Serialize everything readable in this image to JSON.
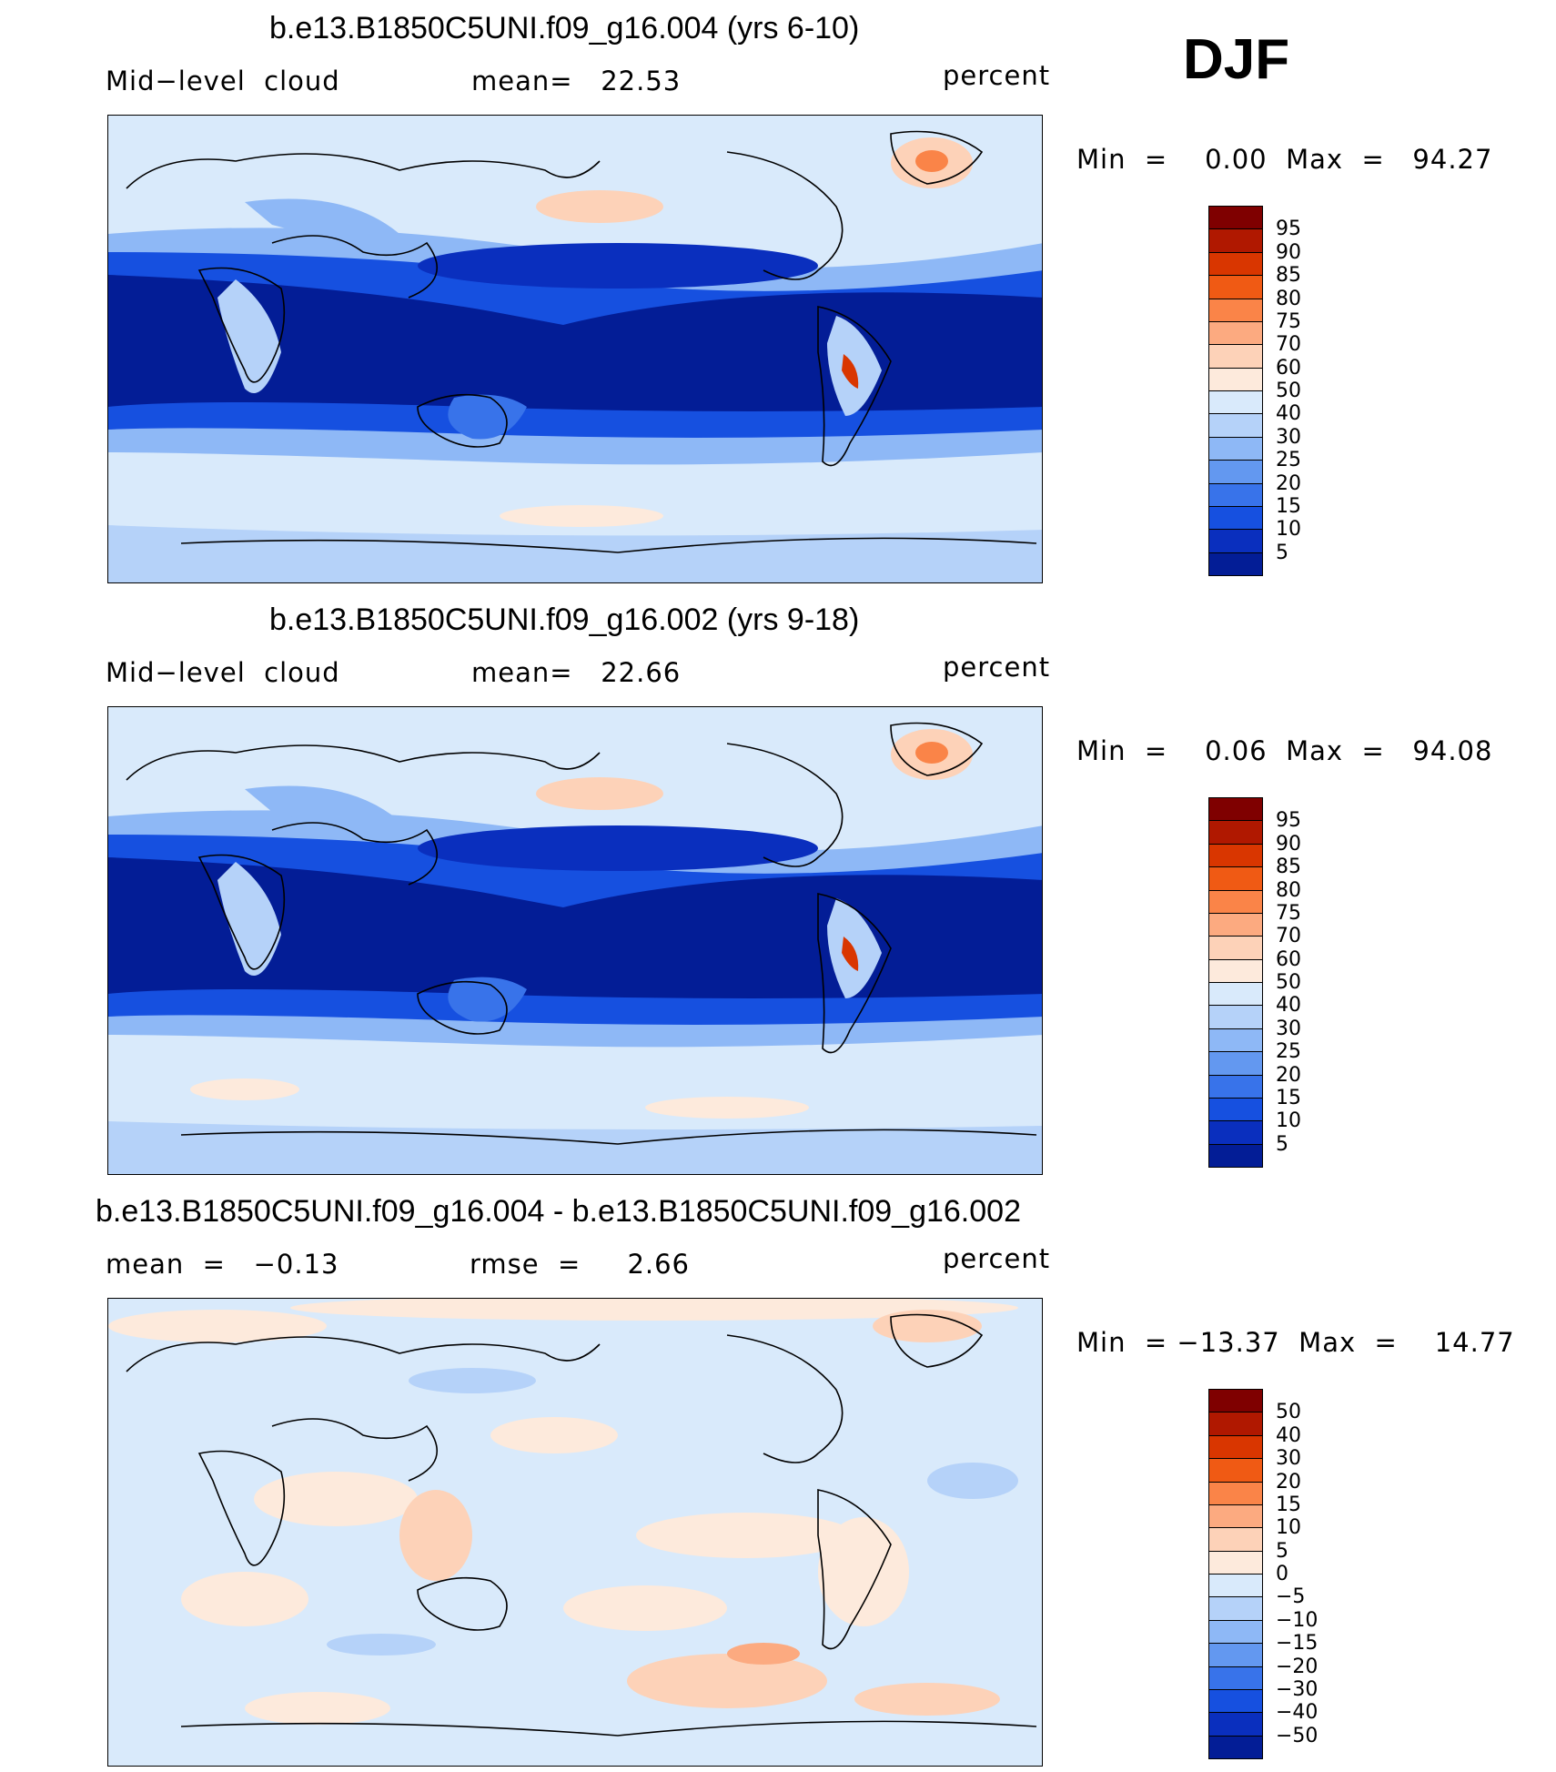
{
  "season": "DJF",
  "panels": [
    {
      "title": "b.e13.B1850C5UNI.f09_g16.004 (yrs 6-10)",
      "left_label": "Mid−level  cloud",
      "center_label": "mean=   22.53",
      "units": "percent",
      "minmax": "Min  =    0.00  Max  =   94.27",
      "colorbar": {
        "labels": [
          "95",
          "90",
          "85",
          "80",
          "75",
          "70",
          "60",
          "50",
          "40",
          "30",
          "25",
          "20",
          "15",
          "10",
          "5"
        ],
        "colors": [
          "#7f0000",
          "#b01800",
          "#d93600",
          "#f05a14",
          "#fa8448",
          "#fcaa80",
          "#fdd2b8",
          "#fdeadc",
          "#d9eafb",
          "#b5d2f9",
          "#8eb8f6",
          "#6398f0",
          "#3873ea",
          "#1650e0",
          "#0a2fbe",
          "#031d96"
        ]
      }
    },
    {
      "title": "b.e13.B1850C5UNI.f09_g16.002 (yrs 9-18)",
      "left_label": "Mid−level  cloud",
      "center_label": "mean=   22.66",
      "units": "percent",
      "minmax": "Min  =    0.06  Max  =   94.08",
      "colorbar": {
        "labels": [
          "95",
          "90",
          "85",
          "80",
          "75",
          "70",
          "60",
          "50",
          "40",
          "30",
          "25",
          "20",
          "15",
          "10",
          "5"
        ],
        "colors": [
          "#7f0000",
          "#b01800",
          "#d93600",
          "#f05a14",
          "#fa8448",
          "#fcaa80",
          "#fdd2b8",
          "#fdeadc",
          "#d9eafb",
          "#b5d2f9",
          "#8eb8f6",
          "#6398f0",
          "#3873ea",
          "#1650e0",
          "#0a2fbe",
          "#031d96"
        ]
      }
    },
    {
      "title": "b.e13.B1850C5UNI.f09_g16.004 - b.e13.B1850C5UNI.f09_g16.002",
      "left_label": "mean  =   −0.13",
      "center_label": "rmse  =     2.66",
      "units": "percent",
      "minmax": "Min  = −13.37  Max  =    14.77",
      "colorbar": {
        "labels": [
          "50",
          "40",
          "30",
          "20",
          "15",
          "10",
          "5",
          "0",
          "−5",
          "−10",
          "−15",
          "−20",
          "−30",
          "−40",
          "−50"
        ],
        "colors": [
          "#7f0000",
          "#b01800",
          "#d93600",
          "#f05a14",
          "#fa8448",
          "#fcaa80",
          "#fdd2b8",
          "#fdeadc",
          "#d9eafb",
          "#b5d2f9",
          "#8eb8f6",
          "#6398f0",
          "#3873ea",
          "#1650e0",
          "#0a2fbe",
          "#031d96"
        ]
      }
    }
  ]
}
